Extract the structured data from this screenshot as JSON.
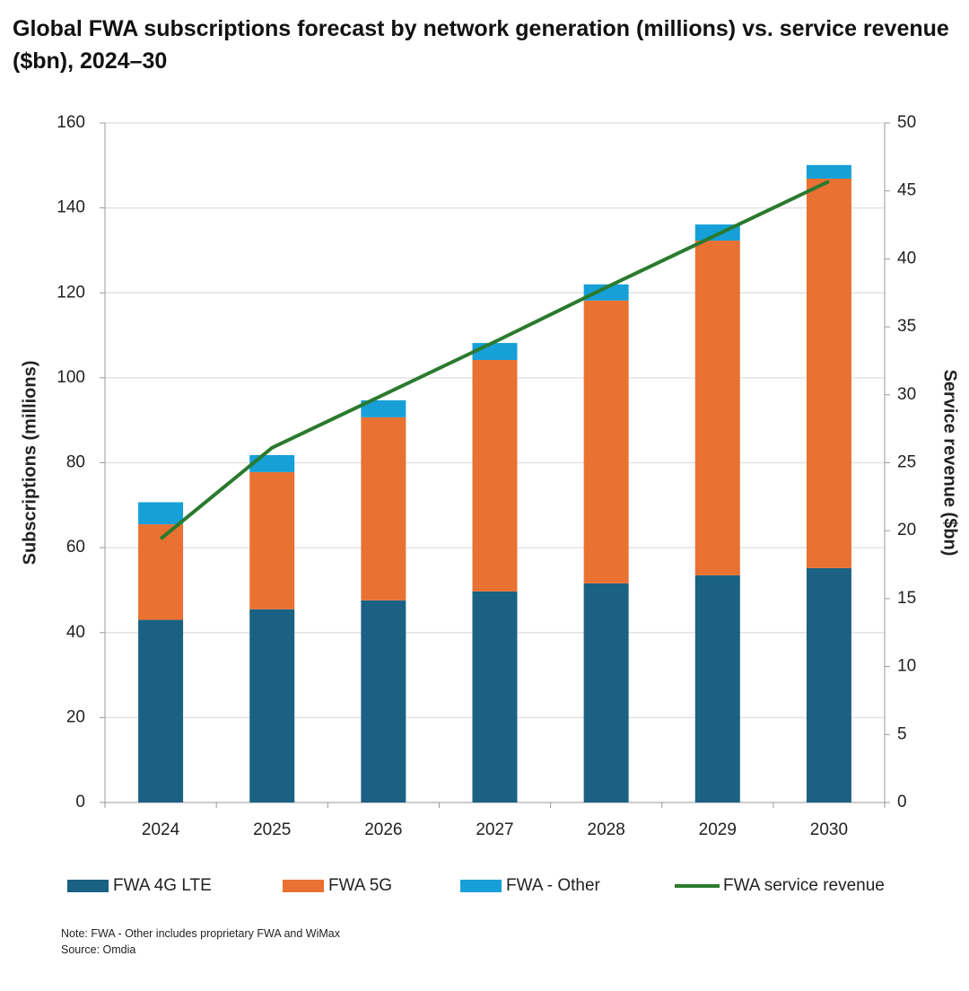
{
  "chart_data": {
    "type": "bar",
    "stacked": true,
    "title": "Global FWA subscriptions forecast by network generation (millions) vs. service revenue ($bn), 2024–30",
    "categories": [
      "2024",
      "2025",
      "2026",
      "2027",
      "2028",
      "2029",
      "2030"
    ],
    "series": [
      {
        "name": "FWA 4G LTE",
        "color": "#1b6184",
        "values": [
          43,
          45.5,
          47.6,
          49.7,
          51.6,
          53.5,
          55.2
        ]
      },
      {
        "name": "FWA 5G",
        "color": "#e97132",
        "values": [
          22.5,
          32.3,
          43.1,
          54.5,
          66.6,
          78.8,
          91.7
        ]
      },
      {
        "name": "FWA - Other",
        "color": "#17a0d8",
        "values": [
          5.2,
          4,
          4,
          4,
          3.8,
          3.8,
          3.2
        ]
      },
      {
        "name": "FWA service revenue",
        "color": "#2a7a2e",
        "type": "line",
        "axis": "y2",
        "values": [
          19.4,
          26.1,
          30.0,
          33.9,
          37.9,
          41.8,
          45.7
        ]
      }
    ],
    "ylabel": "Subscriptions (millions)",
    "y2label": "Service revenue ($bn)",
    "ylim": [
      0,
      160
    ],
    "yticks": [
      0,
      20,
      40,
      60,
      80,
      100,
      120,
      140,
      160
    ],
    "y2lim": [
      0,
      50
    ],
    "y2ticks": [
      0,
      5,
      10,
      15,
      20,
      25,
      30,
      35,
      40,
      45,
      50
    ],
    "grid": true,
    "note": "Note: FWA - Other includes proprietary FWA and WiMax",
    "source": "Source: Omdia"
  }
}
